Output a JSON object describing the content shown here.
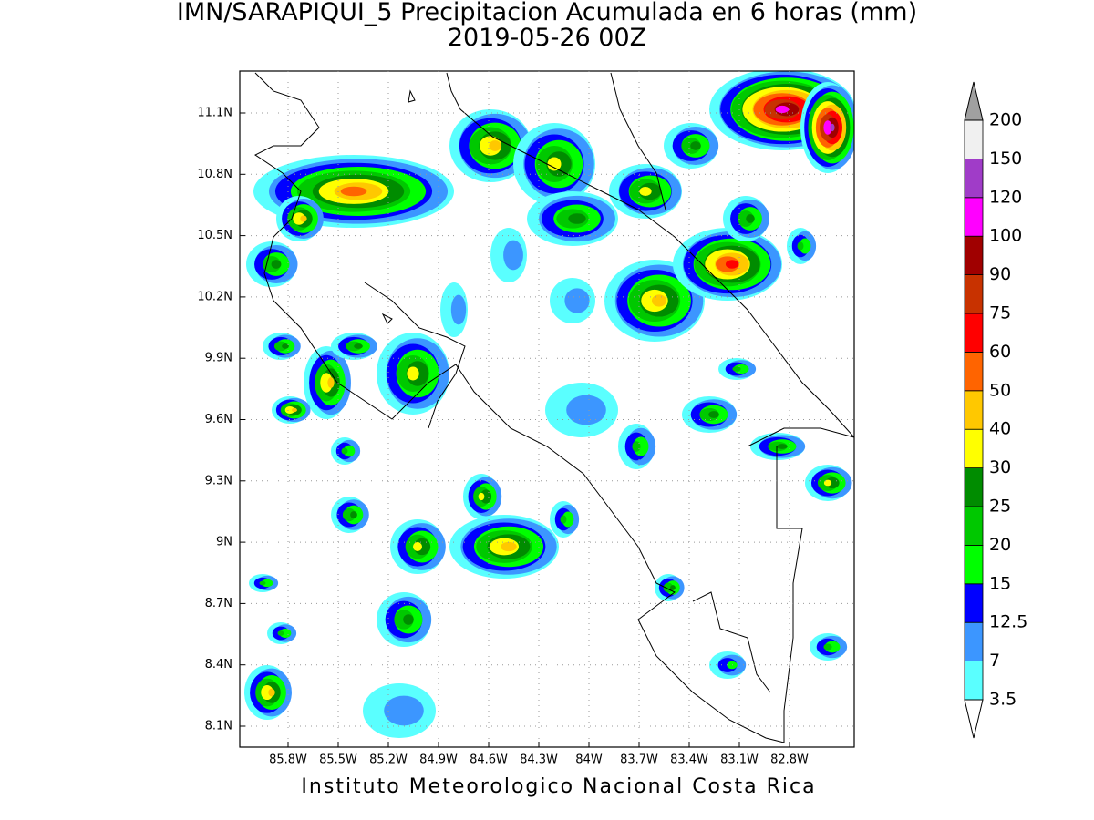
{
  "title": "IMN/SARAPIQUI_5 Precipitacion Acumulada en 6 horas (mm)",
  "subtitle": "2019-05-26 00Z",
  "map": {
    "lat_labels": [
      "11.1N",
      "10.8N",
      "10.5N",
      "10.2N",
      "9.9N",
      "9.6N",
      "9.3N",
      "9N",
      "8.7N",
      "8.4N",
      "8.1N"
    ],
    "lon_labels": [
      "85.8W",
      "85.5W",
      "85.2W",
      "84.9W",
      "84.6W",
      "84.3W",
      "84W",
      "83.7W",
      "83.4W",
      "83.1W",
      "82.8W"
    ]
  },
  "colorbar": {
    "levels": [
      3.5,
      7,
      12.5,
      15,
      20,
      25,
      30,
      40,
      50,
      60,
      75,
      90,
      100,
      120,
      150,
      200
    ],
    "colors": [
      "#5affff",
      "#3c96ff",
      "#0000ff",
      "#00ff00",
      "#00c800",
      "#008c00",
      "#ffff00",
      "#ffc800",
      "#ff6400",
      "#ff0000",
      "#c83200",
      "#a00000",
      "#ff00ff",
      "#a03cc8",
      "#f0f0f0"
    ],
    "under_color": "#ffffff",
    "over_color": "#a0a0a0"
  },
  "footer": "Instituto Meteorologico Nacional Costa Rica"
}
